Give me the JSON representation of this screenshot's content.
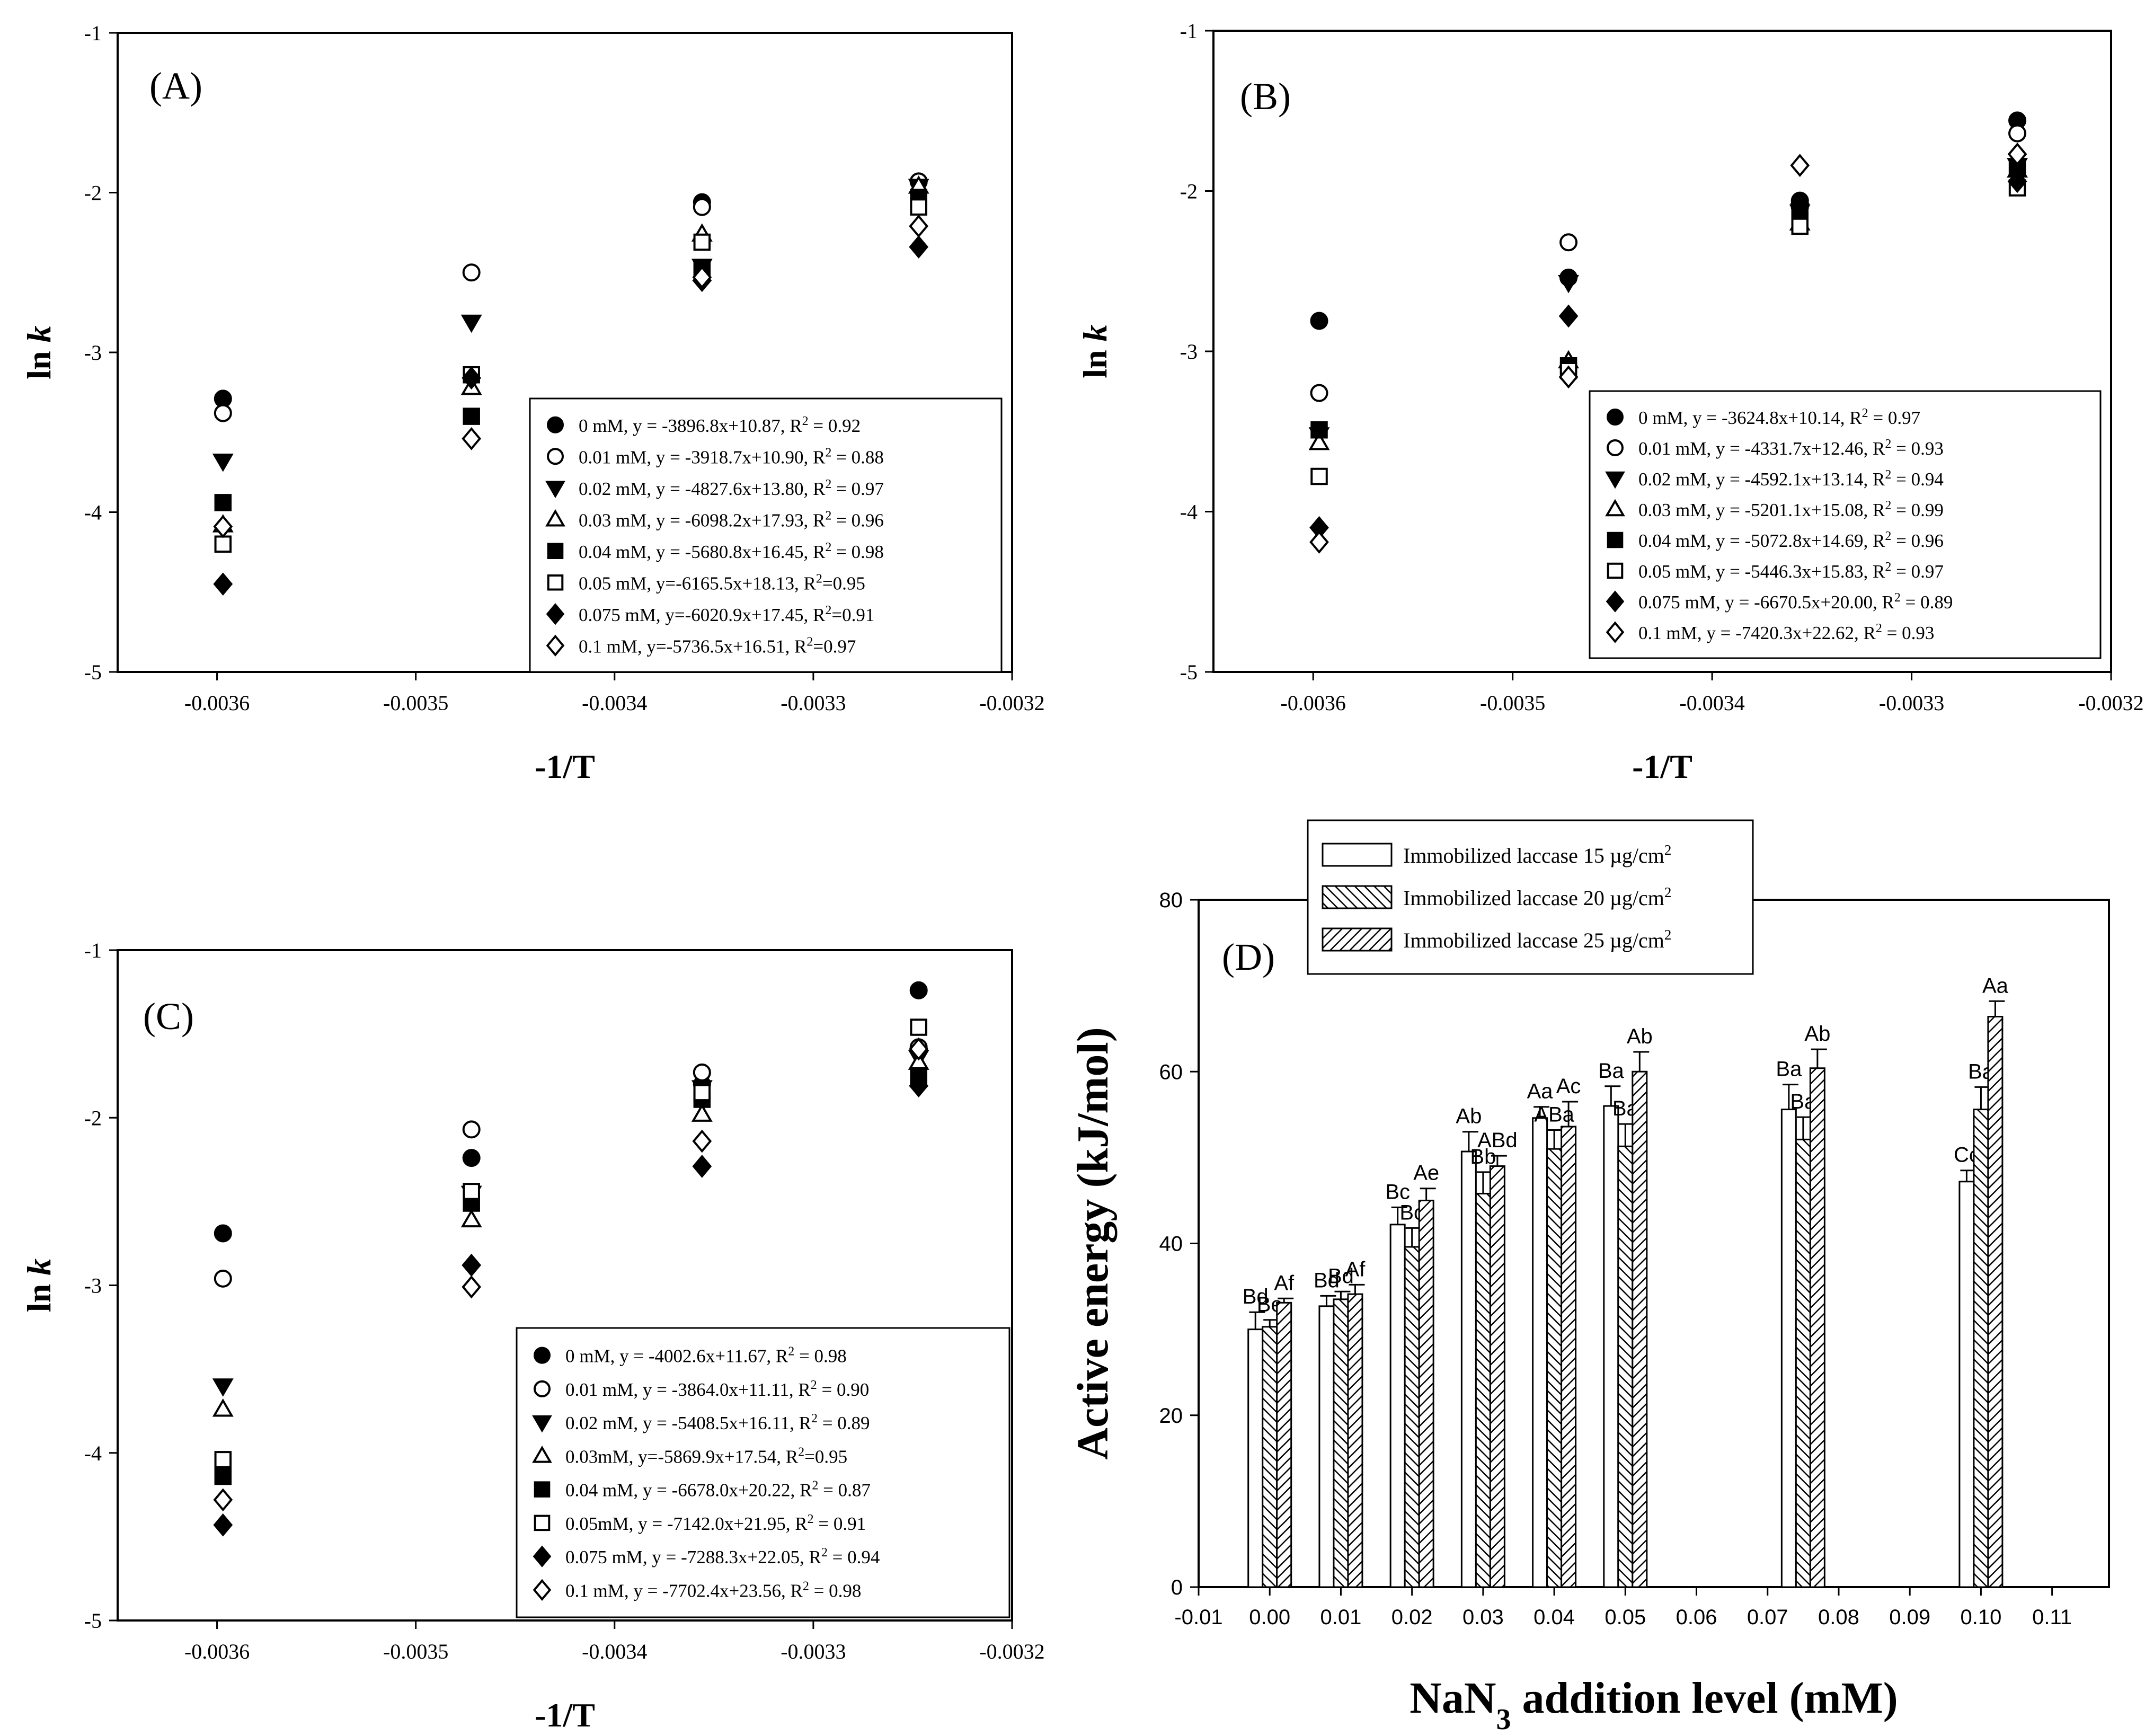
{
  "chart_data": [
    {
      "id": "A",
      "type": "scatter",
      "panel_label": "(A)",
      "xlabel": "-1/T",
      "ylabel": "ln k",
      "xlim": [
        -0.00365,
        -0.0032
      ],
      "ylim": [
        -5,
        -1
      ],
      "x_ticks": [
        -0.0036,
        -0.0035,
        -0.0034,
        -0.0033,
        -0.0032
      ],
      "y_ticks": [
        -5,
        -4,
        -3,
        -2,
        -1
      ],
      "x": [
        -0.003597,
        -0.003472,
        -0.003356,
        -0.003247
      ],
      "legend_position": "bottom-right",
      "series": [
        {
          "name": "0 mM",
          "equation": "0 mM, y = -3896.8x+10.87, R² = 0.92",
          "marker": "circle-filled",
          "slope": -3896.8,
          "intercept": 10.87,
          "values": [
            -3.29,
            null,
            -2.06,
            -1.93
          ]
        },
        {
          "name": "0.01 mM",
          "equation": "0.01 mM, y = -3918.7x+10.90, R² = 0.88",
          "marker": "circle-open",
          "slope": -3918.7,
          "intercept": 10.9,
          "values": [
            -3.38,
            -2.5,
            -2.09,
            -1.93
          ]
        },
        {
          "name": "0.02 mM",
          "equation": "0.02 mM, y = -4827.6x+13.80, R² = 0.97",
          "marker": "triangle-down-filled",
          "slope": -4827.6,
          "intercept": 13.8,
          "values": [
            -3.68,
            -2.81,
            -2.46,
            -1.96
          ]
        },
        {
          "name": "0.03 mM",
          "equation": "0.03 mM, y = -6098.2x+17.93, R² = 0.96",
          "marker": "triangle-up-open",
          "slope": -6098.2,
          "intercept": 17.93,
          "values": [
            -4.08,
            -3.22,
            -2.26,
            -1.96
          ]
        },
        {
          "name": "0.04 mM",
          "equation": "0.04 mM, y = -5680.8x+16.45, R² = 0.98",
          "marker": "square-filled",
          "slope": -5680.8,
          "intercept": 16.45,
          "values": [
            -3.94,
            -3.4,
            -2.48,
            -2.03
          ]
        },
        {
          "name": "0.05 mM",
          "equation": "0.05 mM, y=-6165.5x+18.13, R²=0.95",
          "marker": "square-open",
          "slope": -6165.5,
          "intercept": 18.13,
          "values": [
            -4.2,
            -3.14,
            -2.31,
            -2.09
          ]
        },
        {
          "name": "0.075 mM",
          "equation": "0.075 mM, y=-6020.9x+17.45, R²=0.91",
          "marker": "diamond-filled",
          "slope": -6020.9,
          "intercept": 17.45,
          "values": [
            -4.45,
            -3.16,
            -2.55,
            -2.34
          ]
        },
        {
          "name": "0.1 mM",
          "equation": "0.1 mM, y=-5736.5x+16.51, R²=0.97",
          "marker": "diamond-open",
          "slope": -5736.5,
          "intercept": 16.51,
          "values": [
            -4.09,
            -3.54,
            -2.53,
            -2.21
          ]
        }
      ]
    },
    {
      "id": "B",
      "type": "scatter",
      "panel_label": "(B)",
      "xlabel": "-1/T",
      "ylabel": "ln k",
      "xlim": [
        -0.00365,
        -0.0032
      ],
      "ylim": [
        -5,
        -1
      ],
      "x_ticks": [
        -0.0036,
        -0.0035,
        -0.0034,
        -0.0033,
        -0.0032
      ],
      "y_ticks": [
        -5,
        -4,
        -3,
        -2,
        -1
      ],
      "x": [
        -0.003597,
        -0.003472,
        -0.003356,
        -0.003247
      ],
      "legend_position": "bottom-right",
      "series": [
        {
          "name": "0 mM",
          "equation": "0 mM, y = -3624.8x+10.14, R² = 0.97",
          "marker": "circle-filled",
          "slope": -3624.8,
          "intercept": 10.14,
          "values": [
            -2.81,
            -2.54,
            -2.06,
            -1.56
          ]
        },
        {
          "name": "0.01 mM",
          "equation": "0.01 mM, y = -4331.7x+12.46, R² = 0.93",
          "marker": "circle-open",
          "slope": -4331.7,
          "intercept": 12.46,
          "values": [
            -3.26,
            -2.32,
            -2.1,
            -1.64
          ]
        },
        {
          "name": "0.02 mM",
          "equation": "0.02 mM, y = -4592.1x+13.14, R² = 0.94",
          "marker": "triangle-down-filled",
          "slope": -4592.1,
          "intercept": 13.14,
          "values": [
            -3.52,
            -2.57,
            -2.13,
            -1.84
          ]
        },
        {
          "name": "0.03 mM",
          "equation": "0.03 mM, y = -5201.1x+15.08, R² = 0.99",
          "marker": "triangle-up-open",
          "slope": -5201.1,
          "intercept": 15.08,
          "values": [
            -3.57,
            -3.06,
            -2.2,
            -1.87
          ]
        },
        {
          "name": "0.04 mM",
          "equation": "0.04 mM, y = -5072.8x+14.69, R² = 0.96",
          "marker": "square-filled",
          "slope": -5072.8,
          "intercept": 14.69,
          "values": [
            -3.49,
            -3.09,
            -2.15,
            -1.86
          ]
        },
        {
          "name": "0.05 mM",
          "equation": "0.05 mM, y = -5446.3x+15.83, R² = 0.97",
          "marker": "square-open",
          "slope": -5446.3,
          "intercept": 15.83,
          "values": [
            -3.78,
            -3.12,
            -2.22,
            -1.98
          ]
        },
        {
          "name": "0.075 mM",
          "equation": "0.075 mM, y = -6670.5x+20.00, R² = 0.89",
          "marker": "diamond-filled",
          "slope": -6670.5,
          "intercept": 20.0,
          "values": [
            -4.1,
            -2.78,
            -2.08,
            -1.94
          ]
        },
        {
          "name": "0.1 mM",
          "equation": "0.1 mM, y = -7420.3x+22.62, R² = 0.93",
          "marker": "diamond-open",
          "slope": -7420.3,
          "intercept": 22.62,
          "values": [
            -4.19,
            -3.16,
            -1.84,
            -1.77
          ]
        }
      ]
    },
    {
      "id": "C",
      "type": "scatter",
      "panel_label": "(C)",
      "xlabel": "-1/T",
      "ylabel": "ln k",
      "xlim": [
        -0.00365,
        -0.0032
      ],
      "ylim": [
        -5,
        -1
      ],
      "x_ticks": [
        -0.0036,
        -0.0035,
        -0.0034,
        -0.0033,
        -0.0032
      ],
      "y_ticks": [
        -5,
        -4,
        -3,
        -2,
        -1
      ],
      "x": [
        -0.003597,
        -0.003472,
        -0.003356,
        -0.003247
      ],
      "legend_position": "bottom-right",
      "series": [
        {
          "name": "0 mM",
          "equation": "0 mM, y = -4002.6x+11.67, R² = 0.98",
          "marker": "circle-filled",
          "slope": -4002.6,
          "intercept": 11.67,
          "values": [
            -2.69,
            -2.24,
            -1.8,
            -1.24
          ]
        },
        {
          "name": "0.01 mM",
          "equation": "0.01 mM, y = -3864.0x+11.11, R² = 0.90",
          "marker": "circle-open",
          "slope": -3864.0,
          "intercept": 11.11,
          "values": [
            -2.96,
            -2.07,
            -1.73,
            -1.58
          ]
        },
        {
          "name": "0.02 mM",
          "equation": "0.02 mM, y = -5408.5x+16.11, R² = 0.89",
          "marker": "triangle-down-filled",
          "slope": -5408.5,
          "intercept": 16.11,
          "values": [
            -3.6,
            -2.45,
            -1.82,
            -1.64
          ]
        },
        {
          "name": "0.03mM",
          "equation": "0.03mM, y=-5869.9x+17.54, R²=0.95",
          "marker": "triangle-up-open",
          "slope": -5869.9,
          "intercept": 17.54,
          "values": [
            -3.74,
            -2.61,
            -1.98,
            -1.67
          ]
        },
        {
          "name": "0.04 mM",
          "equation": "0.04 mM, y = -6678.0x+20.22, R² = 0.87",
          "marker": "square-filled",
          "slope": -6678.0,
          "intercept": 20.22,
          "values": [
            -4.14,
            -2.51,
            -1.89,
            -1.75
          ]
        },
        {
          "name": "0.05mM",
          "equation": "0.05mM, y = -7142.0x+21.95, R² = 0.91",
          "marker": "square-open",
          "slope": -7142.0,
          "intercept": 21.95,
          "values": [
            -4.04,
            -2.44,
            -1.85,
            -1.46
          ]
        },
        {
          "name": "0.075 mM",
          "equation": "0.075 mM, y = -7288.3x+22.05, R² = 0.94",
          "marker": "diamond-filled",
          "slope": -7288.3,
          "intercept": 22.05,
          "values": [
            -4.43,
            -2.88,
            -2.29,
            -1.81
          ]
        },
        {
          "name": "0.1 mM",
          "equation": "0.1 mM, y = -7702.4x+23.56, R² = 0.98",
          "marker": "diamond-open",
          "slope": -7702.4,
          "intercept": 23.56,
          "values": [
            -4.28,
            -3.01,
            -2.14,
            -1.59
          ]
        }
      ]
    },
    {
      "id": "D",
      "type": "bar",
      "panel_label": "(D)",
      "xlabel": "NaN3 addition level (mM)",
      "xlabel_base": "NaN",
      "xlabel_sub": "3",
      "xlabel_rest": " addition level (mM)",
      "ylabel": "Active energy (kJ/mol)",
      "xlim": [
        -0.01,
        0.118
      ],
      "ylim": [
        0,
        80
      ],
      "x_ticks": [
        "-0.01",
        "0.00",
        "0.01",
        "0.02",
        "0.03",
        "0.04",
        "0.05",
        "0.06",
        "0.07",
        "0.08",
        "0.09",
        "0.10",
        "0.11"
      ],
      "x_tick_values": [
        -0.01,
        0.0,
        0.01,
        0.02,
        0.03,
        0.04,
        0.05,
        0.06,
        0.07,
        0.08,
        0.09,
        0.1,
        0.11
      ],
      "y_ticks": [
        0,
        20,
        40,
        60,
        80
      ],
      "categories": [
        0.0,
        0.01,
        0.02,
        0.03,
        0.04,
        0.05,
        0.075,
        0.1
      ],
      "legend_position": "top-center",
      "series": [
        {
          "name": "Immobilized  laccase 15 µg/cm²",
          "legend_base": "Immobilized  laccase 15 µg/cm",
          "legend_sup": "2",
          "pattern": "none",
          "values": [
            30.0,
            32.7,
            42.2,
            50.7,
            54.6,
            56.0,
            55.6,
            47.2
          ],
          "errors": [
            2.0,
            1.2,
            2.0,
            2.3,
            1.3,
            2.3,
            2.9,
            1.3
          ],
          "labels": [
            "Bd",
            "Bd",
            "Bc",
            "Ab",
            "Aa",
            "Ba",
            "Ba",
            "Cc"
          ]
        },
        {
          "name": "Immobilized  laccase 20 µg/cm²",
          "legend_base": "Immobilized  laccase 20 µg/cm",
          "legend_sup": "2",
          "pattern": "diag-back",
          "values": [
            30.3,
            33.5,
            39.6,
            45.8,
            51.0,
            51.3,
            52.1,
            55.6
          ],
          "errors": [
            0.8,
            0.9,
            2.2,
            2.5,
            2.2,
            2.6,
            2.6,
            2.6
          ],
          "labels": [
            "Be",
            "Bd",
            "Bc",
            "Bb",
            "ABa",
            "Ba",
            "Ba",
            "Ba"
          ]
        },
        {
          "name": "Immobilized  laccase 25 µg/cm²",
          "legend_base": "Immobilized  laccase 25 µg/cm",
          "legend_sup": "2",
          "pattern": "diag-fwd",
          "values": [
            33.1,
            34.1,
            45.0,
            49.0,
            53.6,
            60.0,
            60.4,
            66.4
          ],
          "errors": [
            0.5,
            1.1,
            1.4,
            1.2,
            2.9,
            2.3,
            2.2,
            1.8
          ],
          "labels": [
            "Af",
            "Af",
            "Ae",
            "ABd",
            "Ac",
            "Ab",
            "Ab",
            "Aa"
          ]
        }
      ]
    }
  ]
}
